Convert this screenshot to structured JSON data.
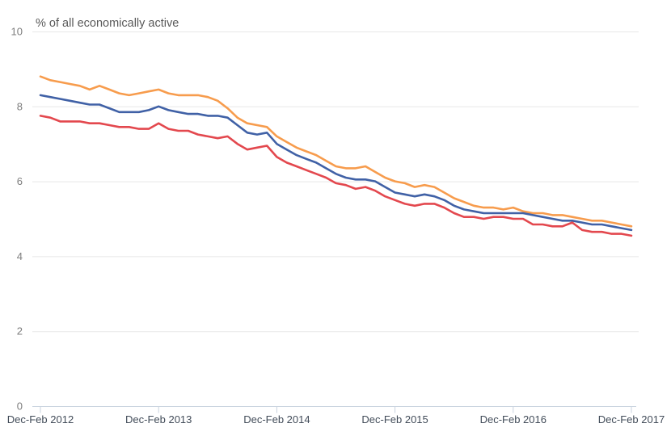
{
  "chart_data": {
    "type": "line",
    "title": "% of all economically active",
    "x_tick_labels": [
      "Dec-Feb 2012",
      "Dec-Feb 2013",
      "Dec-Feb 2014",
      "Dec-Feb 2015",
      "Dec-Feb 2016",
      "Dec-Feb 2017"
    ],
    "x_tick_indices": [
      0,
      12,
      24,
      36,
      48,
      60
    ],
    "n_points": 61,
    "ylim": [
      0,
      10
    ],
    "y_ticks": [
      0,
      2,
      4,
      6,
      8,
      10
    ],
    "y_tick_labels": [
      "0",
      "2",
      "4",
      "6",
      "8",
      "10"
    ],
    "grid": true,
    "legend": "none",
    "colors": {
      "orange": "#f79c4d",
      "blue": "#4061a6",
      "red": "#e3484e",
      "gridline": "#e7e7e7",
      "axis": "#c9d3df",
      "title_text": "#595959",
      "y_label_text": "#7d7d7d",
      "x_label_text": "#424c59"
    },
    "series": [
      {
        "name": "orange",
        "color": "#f79c4d",
        "values": [
          8.8,
          8.7,
          8.65,
          8.6,
          8.55,
          8.45,
          8.55,
          8.45,
          8.35,
          8.3,
          8.35,
          8.4,
          8.45,
          8.35,
          8.3,
          8.3,
          8.3,
          8.25,
          8.15,
          7.95,
          7.7,
          7.55,
          7.5,
          7.45,
          7.2,
          7.05,
          6.9,
          6.8,
          6.7,
          6.55,
          6.4,
          6.35,
          6.35,
          6.4,
          6.25,
          6.1,
          6.0,
          5.95,
          5.85,
          5.9,
          5.85,
          5.7,
          5.55,
          5.45,
          5.35,
          5.3,
          5.3,
          5.25,
          5.3,
          5.2,
          5.15,
          5.15,
          5.1,
          5.1,
          5.05,
          5.0,
          4.95,
          4.95,
          4.9,
          4.85,
          4.8
        ]
      },
      {
        "name": "blue",
        "color": "#4061a6",
        "values": [
          8.3,
          8.25,
          8.2,
          8.15,
          8.1,
          8.05,
          8.05,
          7.95,
          7.85,
          7.85,
          7.85,
          7.9,
          8.0,
          7.9,
          7.85,
          7.8,
          7.8,
          7.75,
          7.75,
          7.7,
          7.5,
          7.3,
          7.25,
          7.3,
          7.0,
          6.85,
          6.7,
          6.6,
          6.5,
          6.35,
          6.2,
          6.1,
          6.05,
          6.05,
          6.0,
          5.85,
          5.7,
          5.65,
          5.6,
          5.65,
          5.6,
          5.5,
          5.35,
          5.25,
          5.2,
          5.15,
          5.15,
          5.15,
          5.15,
          5.15,
          5.1,
          5.05,
          5.0,
          4.95,
          4.95,
          4.9,
          4.85,
          4.85,
          4.8,
          4.75,
          4.7
        ]
      },
      {
        "name": "red",
        "color": "#e3484e",
        "values": [
          7.75,
          7.7,
          7.6,
          7.6,
          7.6,
          7.55,
          7.55,
          7.5,
          7.45,
          7.45,
          7.4,
          7.4,
          7.55,
          7.4,
          7.35,
          7.35,
          7.25,
          7.2,
          7.15,
          7.2,
          7.0,
          6.85,
          6.9,
          6.95,
          6.65,
          6.5,
          6.4,
          6.3,
          6.2,
          6.1,
          5.95,
          5.9,
          5.8,
          5.85,
          5.75,
          5.6,
          5.5,
          5.4,
          5.35,
          5.4,
          5.4,
          5.3,
          5.15,
          5.05,
          5.05,
          5.0,
          5.05,
          5.05,
          5.0,
          5.0,
          4.85,
          4.85,
          4.8,
          4.8,
          4.9,
          4.7,
          4.65,
          4.65,
          4.6,
          4.6,
          4.55
        ]
      }
    ]
  }
}
